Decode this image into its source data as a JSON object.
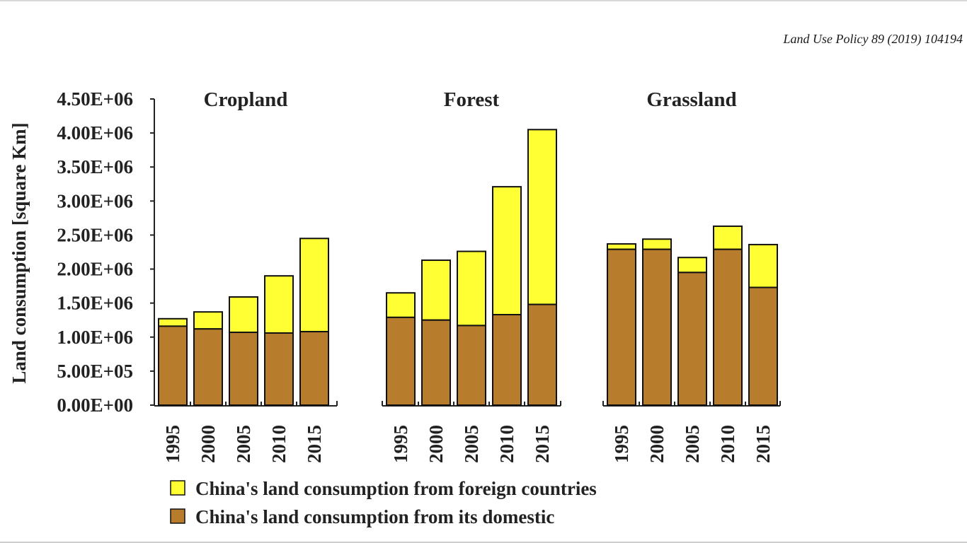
{
  "header": {
    "reference": "Land Use Policy 89 (2019) 104194"
  },
  "colors": {
    "foreign": "#ffff33",
    "domestic": "#b87d2c",
    "axis": "#222222"
  },
  "chart_data": {
    "type": "bar",
    "stacked": true,
    "ylabel": "Land consumption [square Km]",
    "ylim": [
      0,
      4500000
    ],
    "yticks": [
      "0.00E+00",
      "5.00E+05",
      "1.00E+06",
      "1.50E+06",
      "2.00E+06",
      "2.50E+06",
      "3.00E+06",
      "3.50E+06",
      "4.00E+06",
      "4.50E+06"
    ],
    "ytick_values": [
      0,
      500000,
      1000000,
      1500000,
      2000000,
      2500000,
      3000000,
      3500000,
      4000000,
      4500000
    ],
    "legend": [
      {
        "name": "China's land consumption from foreign countries",
        "color_key": "foreign"
      },
      {
        "name": "China's land consumption from its domestic",
        "color_key": "domestic"
      }
    ],
    "legend_placement": "bottom",
    "grid": false,
    "panels": [
      {
        "title": "Cropland",
        "categories": [
          "1995",
          "2000",
          "2005",
          "2010",
          "2015"
        ],
        "domestic": [
          1160000,
          1120000,
          1070000,
          1060000,
          1080000
        ],
        "foreign": [
          110000,
          250000,
          520000,
          840000,
          1370000
        ]
      },
      {
        "title": "Forest",
        "categories": [
          "1995",
          "2000",
          "2005",
          "2010",
          "2015"
        ],
        "domestic": [
          1290000,
          1250000,
          1170000,
          1330000,
          1480000
        ],
        "foreign": [
          360000,
          880000,
          1090000,
          1880000,
          2570000
        ]
      },
      {
        "title": "Grassland",
        "categories": [
          "1995",
          "2000",
          "2005",
          "2010",
          "2015"
        ],
        "domestic": [
          2290000,
          2290000,
          1950000,
          2290000,
          1730000
        ],
        "foreign": [
          80000,
          150000,
          220000,
          340000,
          630000
        ]
      }
    ]
  }
}
